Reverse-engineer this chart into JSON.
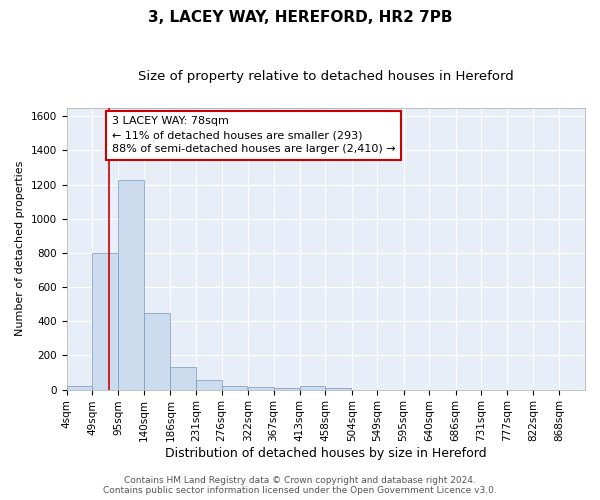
{
  "title1": "3, LACEY WAY, HEREFORD, HR2 7PB",
  "title2": "Size of property relative to detached houses in Hereford",
  "xlabel": "Distribution of detached houses by size in Hereford",
  "ylabel": "Number of detached properties",
  "bin_edges": [
    4,
    49,
    95,
    140,
    186,
    231,
    276,
    322,
    367,
    413,
    458,
    504,
    549,
    595,
    640,
    686,
    731,
    777,
    822,
    868,
    913
  ],
  "bar_heights": [
    20,
    800,
    1230,
    450,
    130,
    55,
    20,
    15,
    10,
    20,
    10,
    0,
    0,
    0,
    0,
    0,
    0,
    0,
    0,
    0
  ],
  "bar_color": "#ccdcee",
  "bar_edge_color": "#7799bb",
  "property_size": 78,
  "vline_color": "#cc0000",
  "annotation_text": "3 LACEY WAY: 78sqm\n← 11% of detached houses are smaller (293)\n88% of semi-detached houses are larger (2,410) →",
  "annotation_box_color": "#ffffff",
  "annotation_box_edge": "#cc0000",
  "ylim": [
    0,
    1650
  ],
  "yticks": [
    0,
    200,
    400,
    600,
    800,
    1000,
    1200,
    1400,
    1600
  ],
  "plot_bg_color": "#e8eef8",
  "footer1": "Contains HM Land Registry data © Crown copyright and database right 2024.",
  "footer2": "Contains public sector information licensed under the Open Government Licence v3.0.",
  "title1_fontsize": 11,
  "title2_fontsize": 9.5,
  "xlabel_fontsize": 9,
  "ylabel_fontsize": 8,
  "tick_fontsize": 7.5,
  "footer_fontsize": 6.5,
  "annotation_fontsize": 8
}
